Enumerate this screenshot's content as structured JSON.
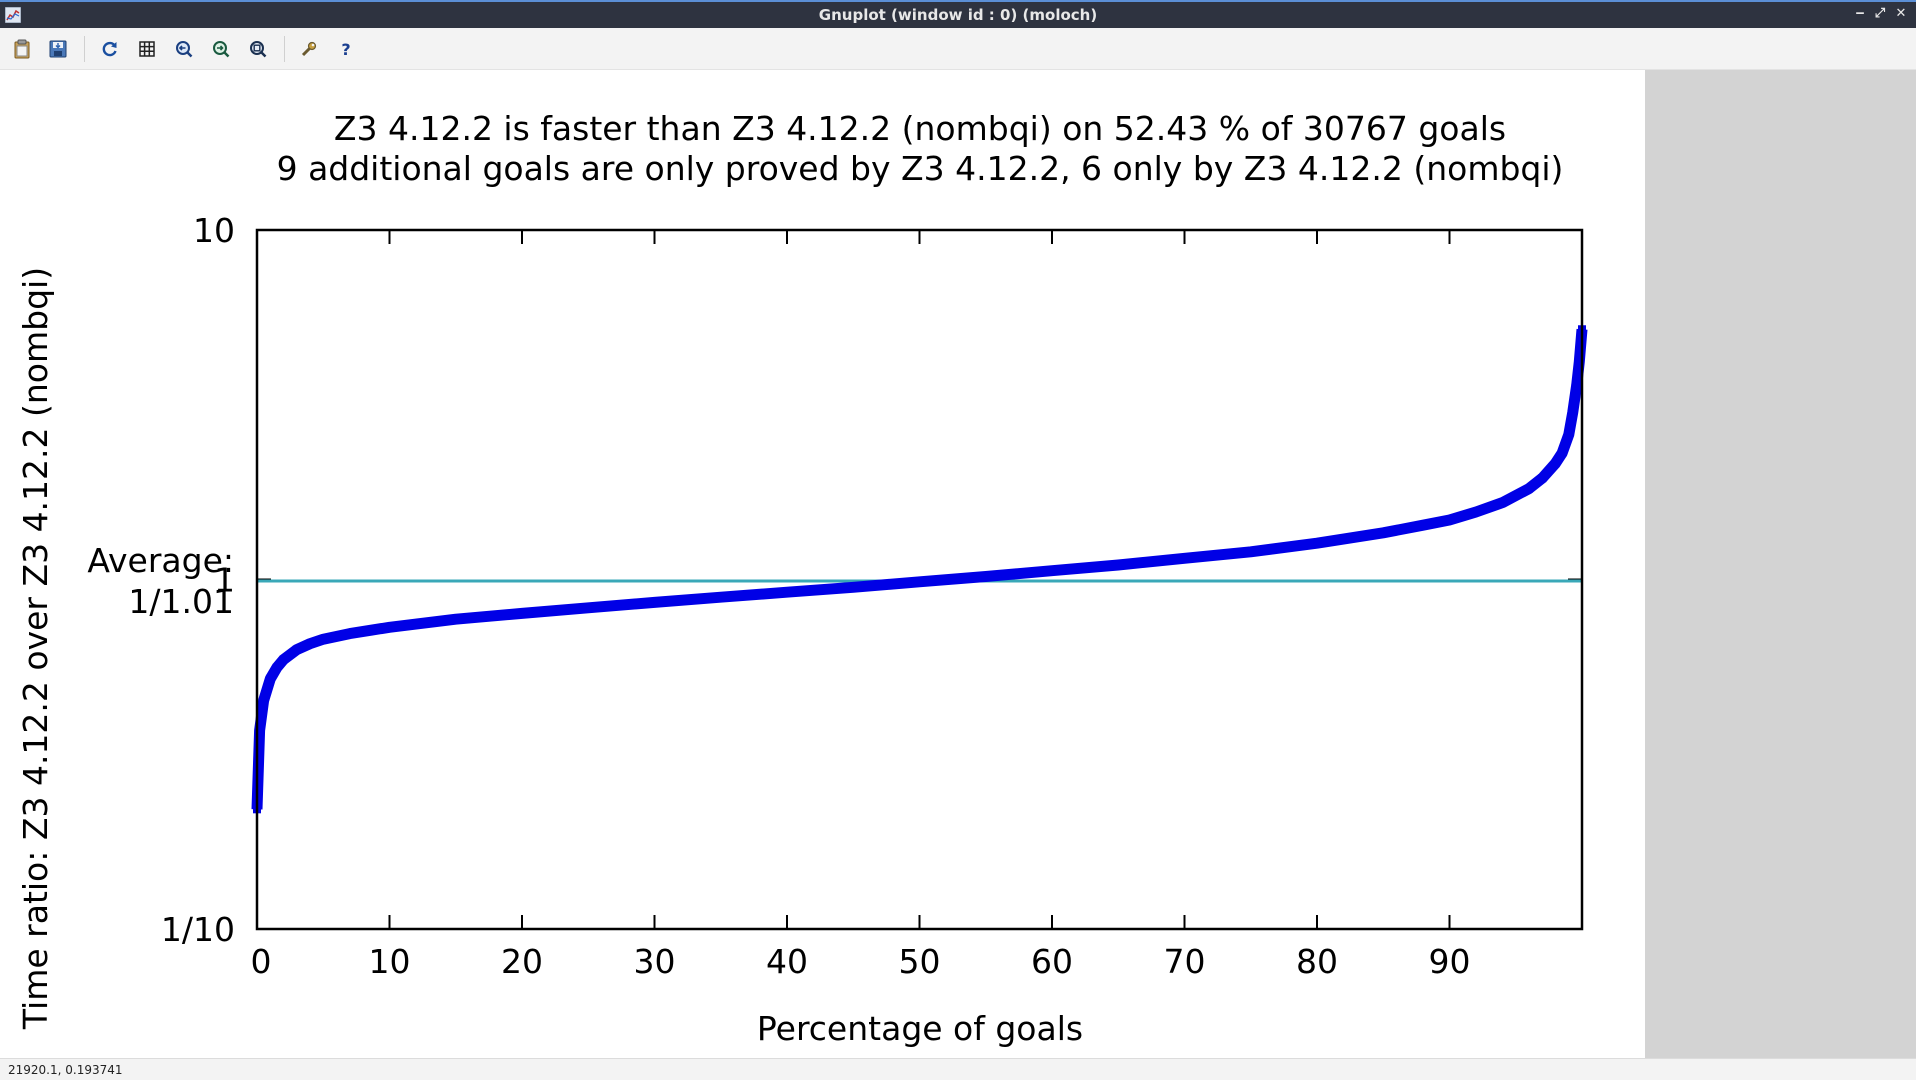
{
  "window": {
    "title": "Gnuplot (window id : 0) (moloch)",
    "controls": {
      "minimize": "‒",
      "restore": "⤢",
      "close": "✕"
    }
  },
  "toolbar": {
    "buttons": [
      {
        "name": "copy-to-clipboard-button",
        "icon": "clipboard-icon"
      },
      {
        "name": "export-button",
        "icon": "save-icon"
      },
      {
        "name": "replot-button",
        "icon": "refresh-icon"
      },
      {
        "name": "grid-button",
        "icon": "grid-icon"
      },
      {
        "name": "previous-zoom-button",
        "icon": "zoom-previous-icon"
      },
      {
        "name": "next-zoom-button",
        "icon": "zoom-next-icon"
      },
      {
        "name": "autoscale-button",
        "icon": "zoom-autoscale-icon"
      },
      {
        "name": "options-button",
        "icon": "wrench-icon"
      },
      {
        "name": "help-button",
        "icon": "help-icon"
      }
    ]
  },
  "status": {
    "coords": "21920.1,  0.193741"
  },
  "colors": {
    "series": "#0000e6",
    "average_line": "#3aa8b8",
    "panel": "#d3d3d3"
  },
  "chart_data": {
    "type": "line",
    "title": "Z3 4.12.2 is faster than Z3 4.12.2 (nombqi) on 52.43 % of 30767 goals",
    "subtitle": "9 additional goals are only proved by Z3 4.12.2, 6 only by Z3 4.12.2 (nombqi)",
    "xlabel": "Percentage of goals",
    "ylabel": "Time ratio: Z3 4.12.2 over Z3 4.12.2 (nombqi)",
    "xlim": [
      0,
      100
    ],
    "ylim": [
      0.1,
      10
    ],
    "yscale": "log",
    "xticks": [
      "0",
      "10",
      "20",
      "30",
      "40",
      "50",
      "60",
      "70",
      "80",
      "90"
    ],
    "xtick_values": [
      0,
      10,
      20,
      30,
      40,
      50,
      60,
      70,
      80,
      90
    ],
    "yticks": [
      "1/10",
      "1",
      "10"
    ],
    "ytick_values": [
      0.1,
      1,
      10
    ],
    "average_label_line1": "Average:",
    "average_label_line2": "1/1.01",
    "average_value": 0.99,
    "grid": false,
    "series": [
      {
        "x": [
          0,
          0.2,
          0.5,
          1,
          1.5,
          2,
          3,
          4,
          5,
          7,
          10,
          15,
          20,
          25,
          30,
          35,
          40,
          45,
          50,
          55,
          60,
          65,
          70,
          75,
          80,
          85,
          88,
          90,
          92,
          94,
          96,
          97,
          98,
          98.5,
          99,
          99.3,
          99.6,
          99.8,
          100
        ],
        "y": [
          0.22,
          0.37,
          0.45,
          0.52,
          0.56,
          0.59,
          0.63,
          0.655,
          0.675,
          0.7,
          0.73,
          0.77,
          0.8,
          0.83,
          0.86,
          0.89,
          0.92,
          0.95,
          0.985,
          1.02,
          1.06,
          1.1,
          1.15,
          1.2,
          1.27,
          1.36,
          1.43,
          1.48,
          1.56,
          1.66,
          1.82,
          1.95,
          2.15,
          2.3,
          2.6,
          3.0,
          3.6,
          4.2,
          5.2
        ]
      }
    ]
  }
}
